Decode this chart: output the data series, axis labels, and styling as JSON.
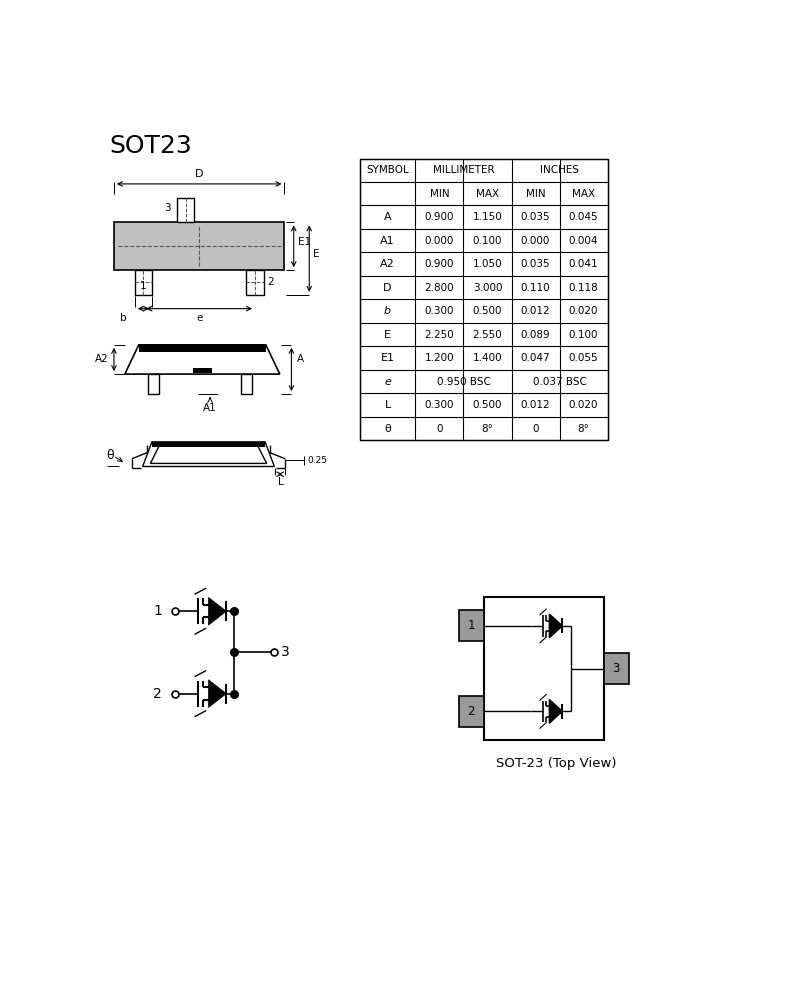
{
  "title": "SOT23",
  "bg_color": "#ffffff",
  "table_rows": [
    [
      "A",
      "0.900",
      "1.150",
      "0.035",
      "0.045"
    ],
    [
      "A1",
      "0.000",
      "0.100",
      "0.000",
      "0.004"
    ],
    [
      "A2",
      "0.900",
      "1.050",
      "0.035",
      "0.041"
    ],
    [
      "D",
      "2.800",
      "3.000",
      "0.110",
      "0.118"
    ],
    [
      "b",
      "0.300",
      "0.500",
      "0.012",
      "0.020"
    ],
    [
      "E",
      "2.250",
      "2.550",
      "0.089",
      "0.100"
    ],
    [
      "E1",
      "1.200",
      "1.400",
      "0.047",
      "0.055"
    ],
    [
      "e",
      "0.950 BSC",
      "",
      "0.037 BSC",
      ""
    ],
    [
      "L",
      "0.300",
      "0.500",
      "0.012",
      "0.020"
    ],
    [
      "θ",
      "0",
      "8°",
      "0",
      "8°"
    ]
  ],
  "text_color": "#000000",
  "line_color": "#000000"
}
